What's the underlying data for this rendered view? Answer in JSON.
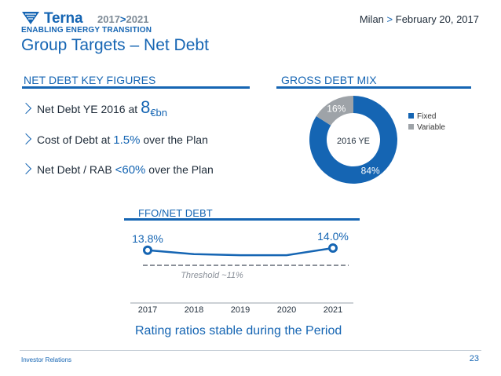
{
  "header": {
    "brand": "Terna",
    "years_start": "2017",
    "years_sep": ">",
    "years_end": "2021",
    "tagline": "ENABLING ENERGY TRANSITION",
    "location": "Milan",
    "location_sep": ">",
    "date": "February 20, 2017",
    "page_title": "Group Targets – Net Debt"
  },
  "key_figures": {
    "heading": "NET DEBT KEY FIGURES",
    "items": [
      {
        "pre": "Net Debt YE 2016 at ",
        "value": "8",
        "unit": "€bn",
        "post": ""
      },
      {
        "pre": "Cost of Debt at ",
        "value": "1.5%",
        "unit": "",
        "post": " over the Plan"
      },
      {
        "pre": "Net Debt / RAB ",
        "value": "<60%",
        "unit": "",
        "post": " over the Plan"
      }
    ]
  },
  "gross_debt_mix": {
    "heading": "GROSS DEBT MIX",
    "center_label": "2016 YE",
    "colors": {
      "fixed": "#1565b3",
      "variable": "#9ea3a8"
    }
  },
  "ffo": {
    "heading": "FFO/NET DEBT",
    "footer": "Rating ratios stable during the Period"
  },
  "chart_data": [
    {
      "type": "pie",
      "title": "GROSS DEBT MIX",
      "subtitle": "2016 YE",
      "categories": [
        "Fixed",
        "Variable"
      ],
      "values": [
        84,
        16
      ],
      "labels": [
        "84%",
        "16%"
      ],
      "legend_position": "right"
    },
    {
      "type": "line",
      "title": "FFO/NET DEBT",
      "x": [
        "2017",
        "2018",
        "2019",
        "2020",
        "2021"
      ],
      "y": [
        13.8,
        13.45,
        13.35,
        13.35,
        14.0
      ],
      "data_labels": [
        {
          "index": 0,
          "text": "13.8%"
        },
        {
          "index": 4,
          "text": "14.0%"
        }
      ],
      "threshold": {
        "value": 11,
        "label": "Threshold ~11%"
      },
      "ylim": [
        10,
        15
      ]
    }
  ],
  "footer": {
    "left": "Investor Relations",
    "page": "23"
  }
}
